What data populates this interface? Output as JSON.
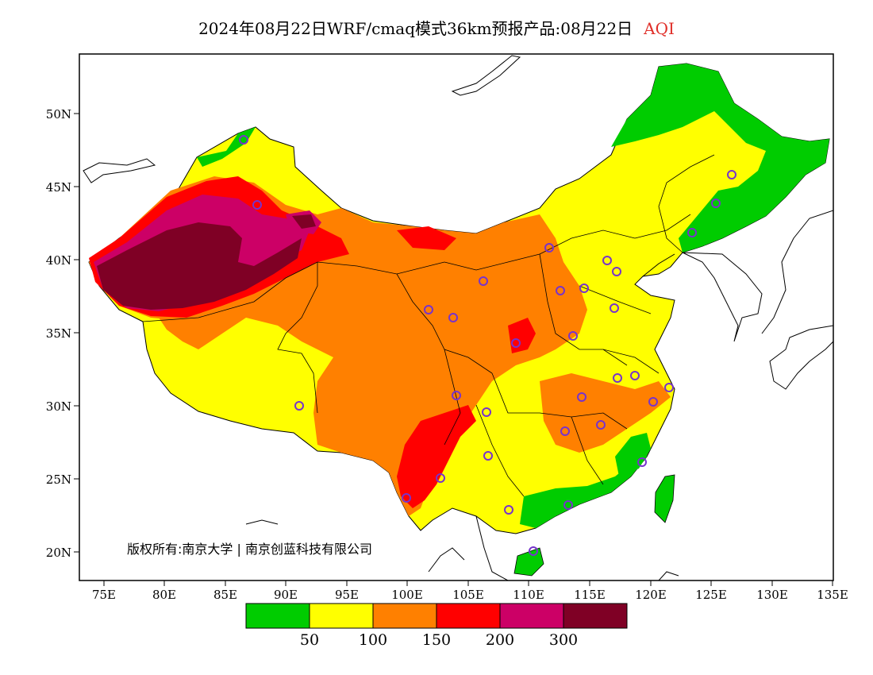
{
  "title": {
    "main": "2024年08月22日WRF/cmaq模式36km预报产品:08月22日",
    "variable": "AQI",
    "variable_color": "#e0302a"
  },
  "axes": {
    "lon_labels": [
      "75E",
      "80E",
      "85E",
      "90E",
      "95E",
      "100E",
      "105E",
      "110E",
      "115E",
      "120E",
      "125E",
      "130E",
      "135E"
    ],
    "lat_labels": [
      "20N",
      "25N",
      "30N",
      "35N",
      "40N",
      "45N",
      "50N"
    ]
  },
  "copyright": "版权所有:南京大学 | 南京创蓝科技有限公司",
  "legend": {
    "colors": [
      "#00cc00",
      "#ffff00",
      "#ff8000",
      "#ff0000",
      "#cc0066",
      "#7f0025"
    ],
    "labels": [
      "50",
      "100",
      "150",
      "200",
      "300"
    ]
  },
  "map_data": {
    "type": "AQI forecast map",
    "lon_range": [
      73,
      135
    ],
    "lat_range": [
      18,
      54
    ],
    "aqi_levels": [
      {
        "range": "0-50",
        "color": "#00cc00"
      },
      {
        "range": "50-100",
        "color": "#ffff00"
      },
      {
        "range": "100-150",
        "color": "#ff8000"
      },
      {
        "range": "150-200",
        "color": "#ff0000"
      },
      {
        "range": "200-300",
        "color": "#cc0066"
      },
      {
        "range": ">300",
        "color": "#7f0025"
      }
    ]
  }
}
